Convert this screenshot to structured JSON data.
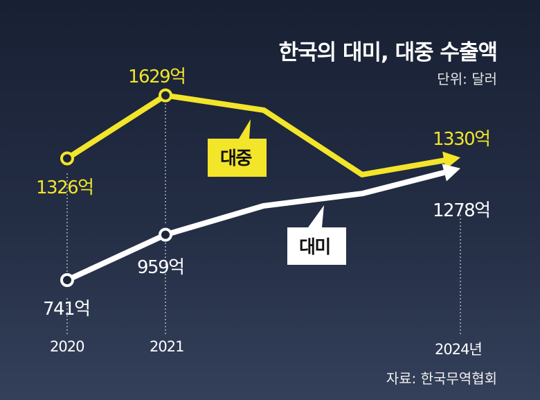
{
  "chart_data": {
    "type": "line",
    "title": "한국의 대미, 대중 수출액",
    "unit": "단위: 달러",
    "source": "자료: 한국무역협회",
    "x": [
      2020,
      2021,
      2022,
      2023,
      2024
    ],
    "tick_labels": [
      "2020",
      "2021",
      "2024년"
    ],
    "series": [
      {
        "name": "대중",
        "color": "#f3e52a",
        "values": [
          1326,
          1629,
          1558,
          1248,
          1330
        ],
        "data_labels": [
          "1326억",
          "1629억",
          "1330억"
        ]
      },
      {
        "name": "대미",
        "color": "#ffffff",
        "values": [
          741,
          959,
          1098,
          1157,
          1278
        ],
        "data_labels": [
          "741억",
          "959억",
          "1278억"
        ]
      }
    ]
  }
}
